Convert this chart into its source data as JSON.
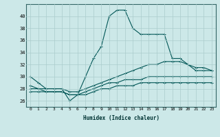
{
  "xlabel": "Humidex (Indice chaleur)",
  "ylabel": "",
  "background_color": "#cce8e8",
  "grid_color": "#aacccc",
  "line_color": "#005555",
  "xlim": [
    -0.5,
    23.5
  ],
  "ylim": [
    25,
    42
  ],
  "yticks": [
    26,
    28,
    30,
    32,
    34,
    36,
    38,
    40
  ],
  "xticks": [
    0,
    1,
    2,
    3,
    4,
    5,
    6,
    7,
    8,
    9,
    10,
    11,
    12,
    13,
    14,
    15,
    16,
    17,
    18,
    19,
    20,
    21,
    22,
    23
  ],
  "series": [
    {
      "x": [
        0,
        1,
        2,
        3,
        4,
        5,
        6,
        7,
        8,
        9,
        10,
        11,
        12,
        13,
        14,
        15,
        16,
        17,
        18,
        19,
        20,
        21,
        22,
        23
      ],
      "y": [
        30,
        29,
        28,
        28,
        28,
        26,
        27,
        30,
        33,
        35,
        40,
        41,
        41,
        38,
        37,
        37,
        37,
        37,
        33,
        33,
        32,
        31,
        31,
        31
      ]
    },
    {
      "x": [
        0,
        1,
        2,
        3,
        4,
        5,
        6,
        7,
        8,
        9,
        10,
        11,
        12,
        13,
        14,
        15,
        16,
        17,
        18,
        19,
        20,
        21,
        22,
        23
      ],
      "y": [
        28.5,
        28.0,
        28.0,
        28.0,
        28.0,
        27.5,
        27.5,
        28.0,
        28.5,
        29.0,
        29.5,
        30.0,
        30.5,
        31.0,
        31.5,
        32.0,
        32.0,
        32.5,
        32.5,
        32.5,
        32.0,
        31.5,
        31.5,
        31.0
      ]
    },
    {
      "x": [
        0,
        1,
        2,
        3,
        4,
        5,
        6,
        7,
        8,
        9,
        10,
        11,
        12,
        13,
        14,
        15,
        16,
        17,
        18,
        19,
        20,
        21,
        22,
        23
      ],
      "y": [
        28.0,
        28.0,
        27.5,
        27.5,
        27.5,
        27.0,
        27.0,
        27.5,
        28.0,
        28.5,
        29.0,
        29.0,
        29.5,
        29.5,
        29.5,
        30.0,
        30.0,
        30.0,
        30.0,
        30.0,
        30.0,
        30.0,
        30.0,
        30.0
      ]
    },
    {
      "x": [
        0,
        1,
        2,
        3,
        4,
        5,
        6,
        7,
        8,
        9,
        10,
        11,
        12,
        13,
        14,
        15,
        16,
        17,
        18,
        19,
        20,
        21,
        22,
        23
      ],
      "y": [
        27.5,
        27.5,
        27.5,
        27.5,
        27.5,
        27.0,
        27.0,
        27.0,
        27.5,
        28.0,
        28.0,
        28.5,
        28.5,
        28.5,
        29.0,
        29.0,
        29.0,
        29.0,
        29.0,
        29.0,
        29.0,
        29.0,
        29.0,
        29.0
      ]
    }
  ]
}
